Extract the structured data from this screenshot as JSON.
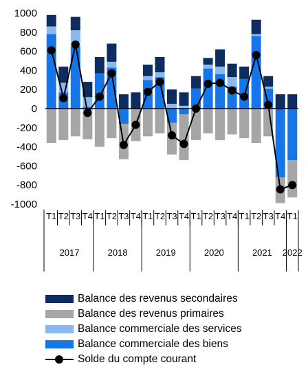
{
  "chart_data": {
    "type": "bar",
    "stacked": true,
    "quarters": [
      "T1",
      "T2",
      "T3",
      "T4",
      "T1",
      "T2",
      "T3",
      "T4",
      "T1",
      "T2",
      "T3",
      "T4",
      "T1",
      "T2",
      "T3",
      "T4",
      "T1",
      "T2",
      "T3",
      "T4",
      "T1"
    ],
    "years": [
      {
        "label": "2017",
        "start": 0,
        "end": 3
      },
      {
        "label": "2018",
        "start": 4,
        "end": 7
      },
      {
        "label": "2019",
        "start": 8,
        "end": 11
      },
      {
        "label": "2020",
        "start": 12,
        "end": 15
      },
      {
        "label": "2021",
        "start": 16,
        "end": 19
      },
      {
        "label": "2022",
        "start": 20,
        "end": 20
      }
    ],
    "ylim": [
      -1000,
      1000
    ],
    "yticks": [
      -1000,
      -800,
      -600,
      -400,
      -200,
      0,
      200,
      400,
      600,
      800,
      1000
    ],
    "series": [
      {
        "name": "Balance commerciale des biens",
        "color": "#1676e8",
        "values": [
          780,
          170,
          650,
          20,
          370,
          430,
          -160,
          0,
          300,
          330,
          -150,
          -60,
          210,
          420,
          360,
          230,
          310,
          760,
          210,
          -720,
          -540
        ]
      },
      {
        "name": "Balance commerciale des services",
        "color": "#8ab9f0",
        "values": [
          80,
          100,
          170,
          100,
          0,
          60,
          0,
          0,
          40,
          50,
          50,
          30,
          0,
          40,
          80,
          100,
          0,
          20,
          20,
          0,
          0
        ]
      },
      {
        "name": "Balance des revenus primaires",
        "color": "#a6a6a6",
        "values": [
          -360,
          -330,
          -290,
          -320,
          -400,
          -310,
          -370,
          -340,
          -290,
          -260,
          -330,
          -480,
          -330,
          -260,
          -330,
          -270,
          -310,
          -360,
          -290,
          -270,
          -390
        ]
      },
      {
        "name": "Balance des revenus secondaires",
        "color": "#0c2d5e",
        "values": [
          120,
          170,
          140,
          160,
          170,
          190,
          150,
          170,
          120,
          160,
          150,
          140,
          130,
          70,
          180,
          140,
          130,
          150,
          110,
          150,
          150
        ]
      }
    ],
    "line": {
      "name": "Solde du compte courant",
      "color": "#000000",
      "values": [
        610,
        110,
        670,
        -45,
        125,
        370,
        -380,
        -170,
        175,
        280,
        -280,
        -370,
        0,
        260,
        270,
        190,
        125,
        560,
        40,
        -845,
        -800
      ]
    },
    "legend": {
      "placement": "bottom",
      "items": [
        {
          "label": "Balance des revenus secondaires",
          "kind": "bar",
          "color": "#0c2d5e"
        },
        {
          "label": "Balance des revenus primaires",
          "kind": "bar",
          "color": "#a6a6a6"
        },
        {
          "label": "Balance commerciale des services",
          "kind": "bar",
          "color": "#8ab9f0"
        },
        {
          "label": "Balance commerciale des biens",
          "kind": "bar",
          "color": "#1676e8"
        },
        {
          "label": "Solde du compte courant",
          "kind": "line",
          "color": "#000000"
        }
      ]
    },
    "grid": false
  }
}
